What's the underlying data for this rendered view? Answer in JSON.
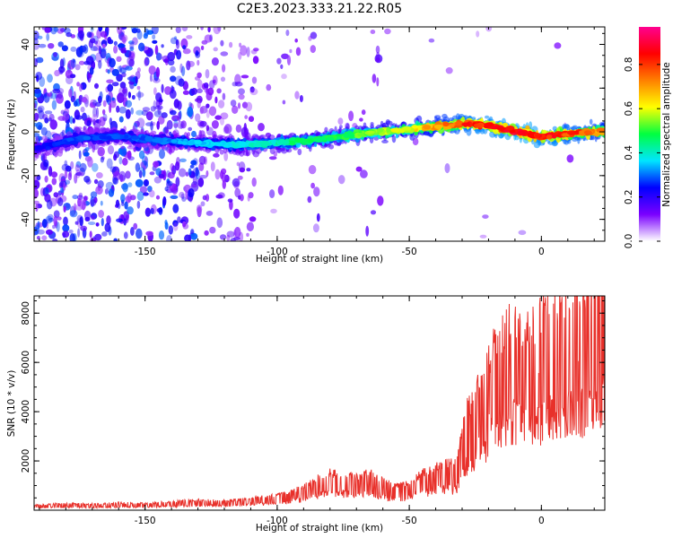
{
  "figure": {
    "title": "C2E3.2023.333.21.22.R05"
  },
  "chart_data": [
    {
      "type": "heatmap",
      "xlabel": "Height of straight line (km)",
      "ylabel": "Frequency (Hz)",
      "xlim": [
        -192,
        24
      ],
      "ylim": [
        -50,
        48
      ],
      "xticks": [
        -150,
        -100,
        -50,
        0
      ],
      "yticks": [
        -40,
        -20,
        0,
        20,
        40
      ],
      "colorbar": {
        "label": "Normalized spectral amplitude",
        "range": [
          0,
          0.97
        ],
        "ticks": [
          "0.0",
          "0.2",
          "0.4",
          "0.6",
          "0.8"
        ],
        "tick_values": [
          0,
          0.2,
          0.4,
          0.6,
          0.8
        ],
        "colors": [
          "#ffffff",
          "#7a00ff",
          "#0000ff",
          "#00e5ff",
          "#00ff40",
          "#ffff00",
          "#ff8000",
          "#ff0000",
          "#ff0090"
        ]
      },
      "ridge": {
        "x": [
          -192,
          -175,
          -160,
          -145,
          -130,
          -115,
          -100,
          -90,
          -80,
          -70,
          -60,
          -50,
          -45,
          -40,
          -35,
          -30,
          -25,
          -20,
          -15,
          -10,
          -5,
          0,
          5,
          10,
          15,
          20,
          24
        ],
        "frequency": [
          -8,
          -3,
          -2,
          -4,
          -5,
          -6,
          -5,
          -4,
          -3,
          -1,
          0,
          1,
          2,
          2.5,
          3,
          4,
          3.5,
          3,
          1.5,
          0.5,
          -1,
          -2,
          -1.5,
          -1,
          -0.5,
          0,
          0
        ],
        "peak_amplitude": [
          0.25,
          0.3,
          0.3,
          0.32,
          0.38,
          0.4,
          0.45,
          0.5,
          0.5,
          0.55,
          0.6,
          0.65,
          0.7,
          0.75,
          0.8,
          0.85,
          0.9,
          0.9,
          0.92,
          0.95,
          0.95,
          0.9,
          0.9,
          0.85,
          0.85,
          0.8,
          0.75
        ]
      }
    },
    {
      "type": "line",
      "xlabel": "Height of straight line (km)",
      "ylabel": "SNR (10 * v/v)",
      "xlim": [
        -192,
        24
      ],
      "ylim": [
        0,
        8700
      ],
      "xticks": [
        -150,
        -100,
        -50,
        0
      ],
      "yticks": [
        2000,
        4000,
        6000,
        8000
      ],
      "series": [
        {
          "color": "#e8302a",
          "x": [
            -192,
            -180,
            -170,
            -160,
            -150,
            -140,
            -130,
            -120,
            -110,
            -100,
            -95,
            -90,
            -85,
            -80,
            -75,
            -70,
            -65,
            -60,
            -55,
            -50,
            -45,
            -40,
            -35,
            -32,
            -30,
            -28,
            -25,
            -22,
            -20,
            -18,
            -15,
            -12,
            -10,
            -7,
            -5,
            -2,
            0,
            3,
            5,
            8,
            10,
            13,
            15,
            18,
            20,
            22,
            24
          ],
          "y": [
            150,
            200,
            180,
            220,
            200,
            250,
            300,
            280,
            350,
            450,
            550,
            700,
            950,
            1100,
            1050,
            1000,
            1100,
            900,
            700,
            800,
            1100,
            1250,
            1400,
            1300,
            2500,
            3000,
            3500,
            3900,
            4400,
            5000,
            5200,
            5600,
            5800,
            5400,
            5600,
            5500,
            5700,
            5900,
            6000,
            5800,
            6200,
            6300,
            6100,
            6600,
            6800,
            7000,
            7200
          ]
        }
      ]
    }
  ]
}
